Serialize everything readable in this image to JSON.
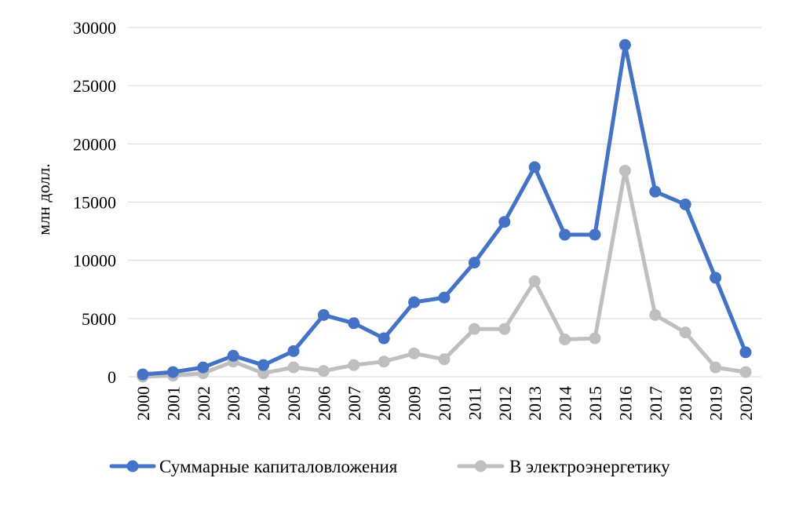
{
  "chart_data": {
    "type": "line",
    "title": "",
    "xlabel": "",
    "ylabel": "млн долл.",
    "ylim": [
      0,
      30000
    ],
    "y_ticks": [
      0,
      5000,
      10000,
      15000,
      20000,
      25000,
      30000
    ],
    "y_tick_labels": [
      "0",
      "5000",
      "10000",
      "15000",
      "20000",
      "25000",
      "30000"
    ],
    "grid": true,
    "legend_position": "bottom",
    "categories": [
      "2000",
      "2001",
      "2002",
      "2003",
      "2004",
      "2005",
      "2006",
      "2007",
      "2008",
      "2009",
      "2010",
      "2011",
      "2012",
      "2013",
      "2014",
      "2015",
      "2016",
      "2017",
      "2018",
      "2019",
      "2020"
    ],
    "series": [
      {
        "name": "Суммарные капиталовложения",
        "color": "#4472C4",
        "values": [
          200,
          400,
          800,
          1800,
          1000,
          2200,
          5300,
          4600,
          3300,
          6400,
          6800,
          9800,
          13300,
          18000,
          12200,
          12200,
          28500,
          15900,
          14800,
          8500,
          2100
        ]
      },
      {
        "name": "В электроэнергетику",
        "color": "#BFBFBF",
        "values": [
          0,
          100,
          300,
          1300,
          300,
          800,
          500,
          1000,
          1300,
          2000,
          1500,
          4100,
          4100,
          8200,
          3200,
          3300,
          17700,
          5300,
          3800,
          800,
          400
        ]
      }
    ]
  }
}
